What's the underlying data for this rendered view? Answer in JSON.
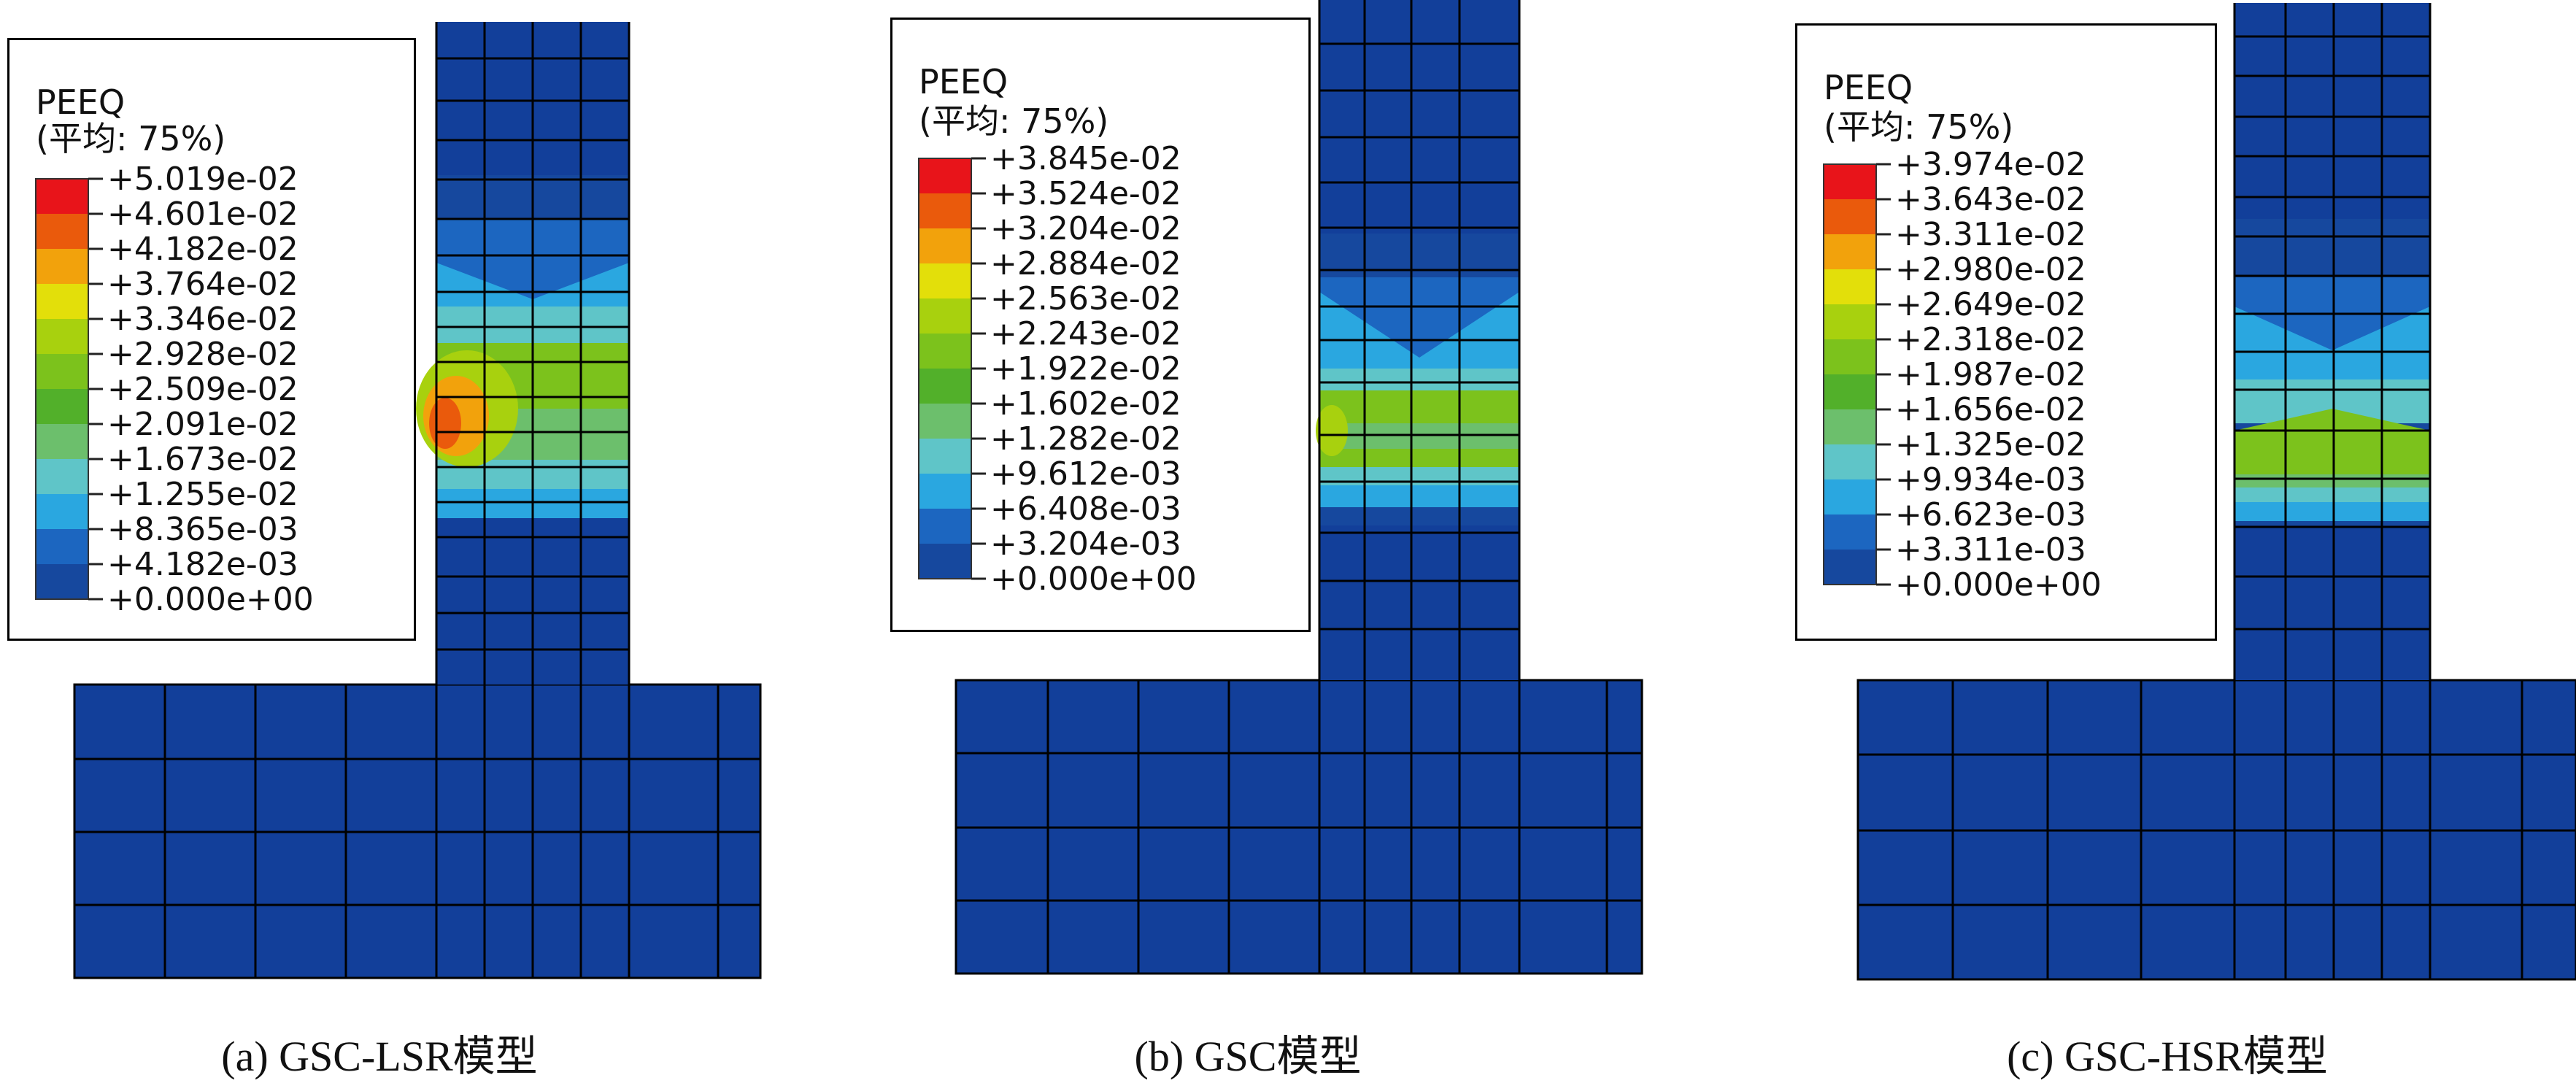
{
  "panels": [
    {
      "caption": "(a) GSC-LSR模型",
      "legend": {
        "title": "PEEQ",
        "subtitle": "(平均: 75%)",
        "values": [
          "+5.019e-02",
          "+4.601e-02",
          "+4.182e-02",
          "+3.764e-02",
          "+3.346e-02",
          "+2.928e-02",
          "+2.509e-02",
          "+2.091e-02",
          "+1.673e-02",
          "+1.255e-02",
          "+8.365e-03",
          "+4.182e-03",
          "+0.000e+00"
        ]
      }
    },
    {
      "caption": "(b) GSC模型",
      "legend": {
        "title": "PEEQ",
        "subtitle": "(平均: 75%)",
        "values": [
          "+3.845e-02",
          "+3.524e-02",
          "+3.204e-02",
          "+2.884e-02",
          "+2.563e-02",
          "+2.243e-02",
          "+1.922e-02",
          "+1.602e-02",
          "+1.282e-02",
          "+9.612e-03",
          "+6.408e-03",
          "+3.204e-03",
          "+0.000e+00"
        ]
      }
    },
    {
      "caption": "(c) GSC-HSR模型",
      "legend": {
        "title": "PEEQ",
        "subtitle": "(平均: 75%)",
        "values": [
          "+3.974e-02",
          "+3.643e-02",
          "+3.311e-02",
          "+2.980e-02",
          "+2.649e-02",
          "+2.318e-02",
          "+1.987e-02",
          "+1.656e-02",
          "+1.325e-02",
          "+9.934e-03",
          "+6.623e-03",
          "+3.311e-03",
          "+0.000e+00"
        ]
      }
    }
  ],
  "colormap": [
    "#e8141a",
    "#ea5a0c",
    "#f2a20c",
    "#e3df0a",
    "#a8d10e",
    "#7cc21c",
    "#52b02a",
    "#6cbf6c",
    "#5fc5c8",
    "#2aa7e0",
    "#1c66c0",
    "#16489e",
    "#123f9a"
  ]
}
